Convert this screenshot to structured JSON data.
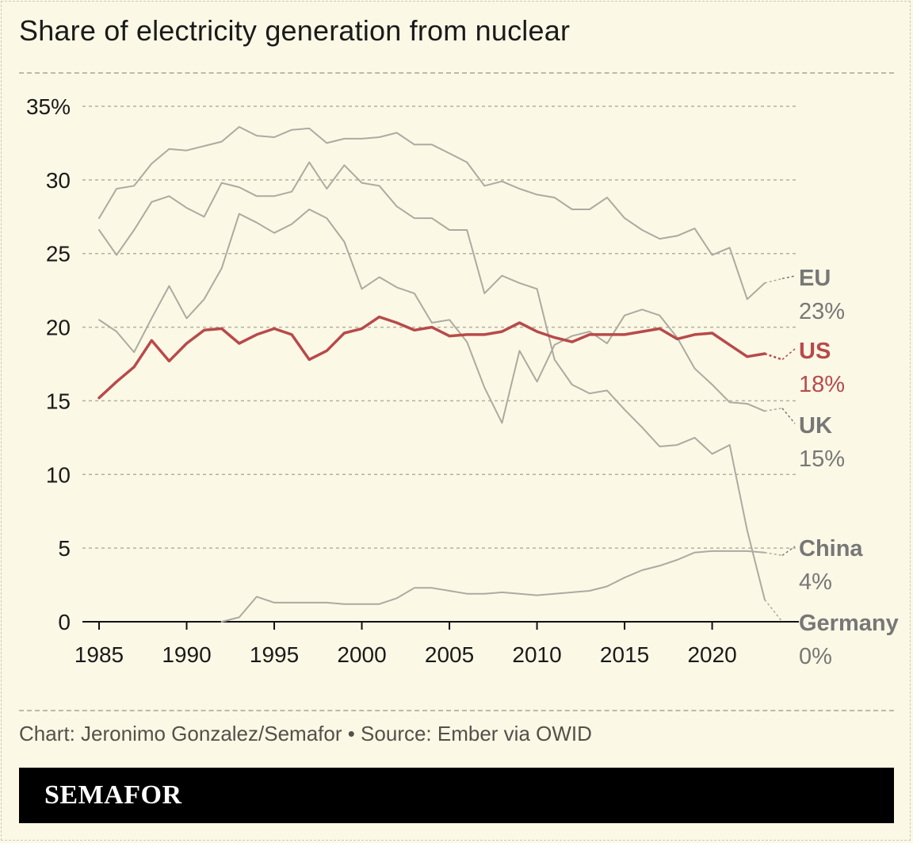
{
  "title": "Share of electricity generation from nuclear",
  "source": "Chart: Jeronimo Gonzalez/Semafor • Source: Ember via OWID",
  "brand": "SEMAFOR",
  "colors": {
    "background": "#fbf8e6",
    "grey_series": "#adaaa0",
    "us_series": "#b84a4a",
    "label_grey": "#777777",
    "gridline": "#b5b1a0"
  },
  "chart_data": {
    "type": "line",
    "title": "Share of electricity generation from nuclear",
    "xlabel": "",
    "ylabel": "",
    "xlim": [
      1985,
      2024
    ],
    "ylim": [
      0,
      35
    ],
    "y_ticks": [
      {
        "value": 35,
        "label": "35%"
      },
      {
        "value": 30,
        "label": "30"
      },
      {
        "value": 25,
        "label": "25"
      },
      {
        "value": 20,
        "label": "20"
      },
      {
        "value": 15,
        "label": "15"
      },
      {
        "value": 10,
        "label": "10"
      },
      {
        "value": 5,
        "label": "5"
      },
      {
        "value": 0,
        "label": "0"
      }
    ],
    "x_ticks": [
      1985,
      1990,
      1995,
      2000,
      2005,
      2010,
      2015,
      2020
    ],
    "grid": true,
    "series": [
      {
        "name": "EU",
        "value_label": "23%",
        "highlight": false,
        "start": 1985,
        "values": [
          27.4,
          29.4,
          29.6,
          31.1,
          32.1,
          32.0,
          32.3,
          32.6,
          33.6,
          33.0,
          32.9,
          33.4,
          33.5,
          32.5,
          32.8,
          32.8,
          32.9,
          33.2,
          32.4,
          32.4,
          31.8,
          31.2,
          29.6,
          29.9,
          29.4,
          29.0,
          28.8,
          28.0,
          28.0,
          28.8,
          27.4,
          26.6,
          26.0,
          26.2,
          26.7,
          24.9,
          25.4,
          21.9,
          23.0,
          23.3
        ]
      },
      {
        "name": "US",
        "value_label": "18%",
        "highlight": true,
        "start": 1985,
        "values": [
          15.2,
          16.3,
          17.3,
          19.1,
          17.7,
          18.9,
          19.8,
          19.9,
          18.9,
          19.5,
          19.9,
          19.5,
          17.8,
          18.4,
          19.6,
          19.9,
          20.7,
          20.3,
          19.8,
          20.0,
          19.4,
          19.5,
          19.5,
          19.7,
          20.3,
          19.7,
          19.3,
          19.0,
          19.5,
          19.5,
          19.5,
          19.7,
          19.9,
          19.2,
          19.5,
          19.6,
          18.8,
          18.0,
          18.2,
          17.8
        ]
      },
      {
        "name": "UK",
        "value_label": "15%",
        "highlight": false,
        "start": 1985,
        "values": [
          20.5,
          19.7,
          18.3,
          20.6,
          22.8,
          20.6,
          21.9,
          24.0,
          27.7,
          27.1,
          26.4,
          27.0,
          28.0,
          27.4,
          25.8,
          22.6,
          23.4,
          22.7,
          22.3,
          20.3,
          20.5,
          19.0,
          15.9,
          13.5,
          18.4,
          16.3,
          18.8,
          19.4,
          19.7,
          18.9,
          20.8,
          21.2,
          20.8,
          19.3,
          17.2,
          16.1,
          14.9,
          14.8,
          14.3,
          14.5
        ]
      },
      {
        "name": "Germany",
        "value_label": "0%",
        "highlight": false,
        "start": 1985,
        "values": [
          26.6,
          24.9,
          26.6,
          28.5,
          28.9,
          28.1,
          27.5,
          29.8,
          29.5,
          28.9,
          28.9,
          29.2,
          31.2,
          29.4,
          31.0,
          29.8,
          29.6,
          28.2,
          27.4,
          27.4,
          26.6,
          26.6,
          22.3,
          23.5,
          23.0,
          22.6,
          17.8,
          16.1,
          15.5,
          15.7,
          14.4,
          13.2,
          11.9,
          12.0,
          12.5,
          11.4,
          12.0,
          6.2,
          1.5,
          0.0
        ]
      },
      {
        "name": "China",
        "value_label": "4%",
        "highlight": false,
        "start": 1992,
        "values": [
          0.0,
          0.3,
          1.7,
          1.3,
          1.3,
          1.3,
          1.3,
          1.2,
          1.2,
          1.2,
          1.6,
          2.3,
          2.3,
          2.1,
          1.9,
          1.9,
          2.0,
          1.9,
          1.8,
          1.9,
          2.0,
          2.1,
          2.4,
          3.0,
          3.5,
          3.8,
          4.2,
          4.7,
          4.8,
          4.8,
          4.8,
          4.7,
          4.5
        ]
      }
    ],
    "annotations": [
      {
        "series": "EU",
        "name": "EU",
        "value": "23%"
      },
      {
        "series": "US",
        "name": "US",
        "value": "18%"
      },
      {
        "series": "UK",
        "name": "UK",
        "value": "15%"
      },
      {
        "series": "China",
        "name": "China",
        "value": "4%"
      },
      {
        "series": "Germany",
        "name": "Germany",
        "value": "0%"
      }
    ]
  }
}
